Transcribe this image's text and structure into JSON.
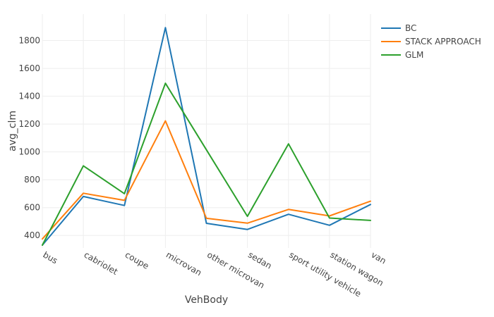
{
  "chart_data": {
    "type": "line",
    "xlabel": "VehBody",
    "ylabel": "avg_clm",
    "categories": [
      "bus",
      "cabriolet",
      "coupe",
      "microvan",
      "other microvan",
      "sedan",
      "sport utility vehicle",
      "station wagon",
      "van"
    ],
    "ylim": [
      310,
      1990
    ],
    "yticks": [
      400,
      600,
      800,
      1000,
      1200,
      1400,
      1600,
      1800
    ],
    "grid": true,
    "legend_position": "top-right",
    "series": [
      {
        "name": "BC",
        "color": "#1f77b4",
        "values": [
          330,
          680,
          615,
          1893,
          487,
          443,
          552,
          473,
          622
        ]
      },
      {
        "name": "STACK APPROACH",
        "color": "#ff7f0e",
        "values": [
          375,
          703,
          652,
          1223,
          523,
          488,
          587,
          540,
          646
        ]
      },
      {
        "name": "GLM",
        "color": "#2ca02c",
        "values": [
          330,
          900,
          700,
          1493,
          1015,
          537,
          1058,
          525,
          508
        ]
      }
    ]
  }
}
